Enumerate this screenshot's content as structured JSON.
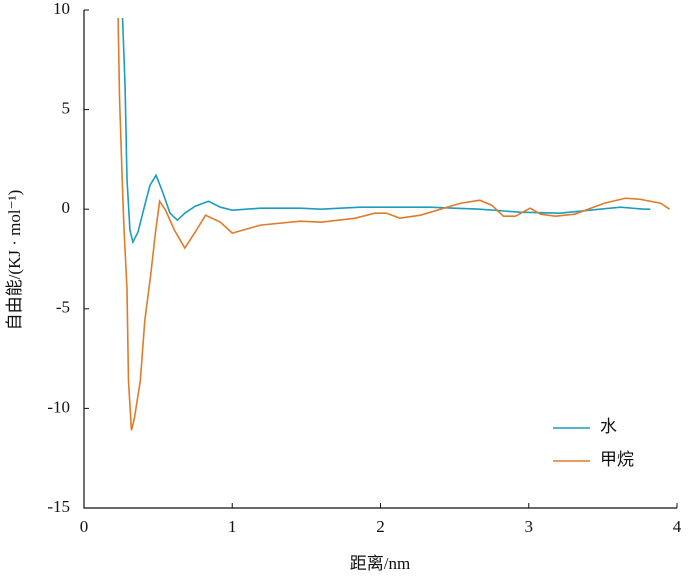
{
  "chart_data": {
    "type": "line",
    "xlabel": "距离/nm",
    "ylabel": "自由能/(KJ · mol⁻¹)",
    "xlim": [
      0,
      4
    ],
    "xticks": [
      0,
      1,
      2,
      3,
      4
    ],
    "ylim": [
      -15,
      10
    ],
    "yticks": [
      -15,
      -10,
      -5,
      0,
      5,
      10
    ],
    "legend": "lower right",
    "series": [
      {
        "name": "水",
        "color": "#1a9dbf",
        "x": [
          0.26,
          0.277,
          0.29,
          0.31,
          0.33,
          0.364,
          0.41,
          0.445,
          0.486,
          0.526,
          0.58,
          0.63,
          0.68,
          0.75,
          0.84,
          0.92,
          1.0,
          1.19,
          1.46,
          1.6,
          1.86,
          2.33,
          2.67,
          2.94,
          3.21,
          3.48,
          3.62,
          3.78,
          3.82
        ],
        "values": [
          9.6,
          6.2,
          1.5,
          -1.05,
          -1.65,
          -1.15,
          0.2,
          1.2,
          1.7,
          0.95,
          -0.2,
          -0.55,
          -0.2,
          0.15,
          0.4,
          0.1,
          -0.05,
          0.05,
          0.05,
          0.0,
          0.1,
          0.1,
          0.0,
          -0.15,
          -0.2,
          0.0,
          0.1,
          0.0,
          0.0
        ]
      },
      {
        "name": "甲烷",
        "color": "#e07b2a",
        "x": [
          0.23,
          0.24,
          0.26,
          0.27,
          0.29,
          0.3,
          0.32,
          0.34,
          0.38,
          0.41,
          0.45,
          0.48,
          0.51,
          0.55,
          0.61,
          0.68,
          0.75,
          0.82,
          0.92,
          1.0,
          1.19,
          1.46,
          1.6,
          1.83,
          1.96,
          2.04,
          2.13,
          2.27,
          2.54,
          2.67,
          2.75,
          2.83,
          2.91,
          3.01,
          3.08,
          3.18,
          3.31,
          3.51,
          3.65,
          3.75,
          3.89,
          3.95
        ],
        "values": [
          9.6,
          5.5,
          1.0,
          -1.0,
          -4.0,
          -8.6,
          -11.1,
          -10.5,
          -8.6,
          -5.6,
          -3.3,
          -1.3,
          0.4,
          -0.05,
          -1.05,
          -1.95,
          -1.15,
          -0.3,
          -0.65,
          -1.2,
          -0.8,
          -0.6,
          -0.65,
          -0.45,
          -0.2,
          -0.2,
          -0.45,
          -0.3,
          0.3,
          0.45,
          0.2,
          -0.35,
          -0.35,
          0.05,
          -0.25,
          -0.35,
          -0.25,
          0.3,
          0.55,
          0.5,
          0.3,
          0.0
        ]
      }
    ]
  }
}
